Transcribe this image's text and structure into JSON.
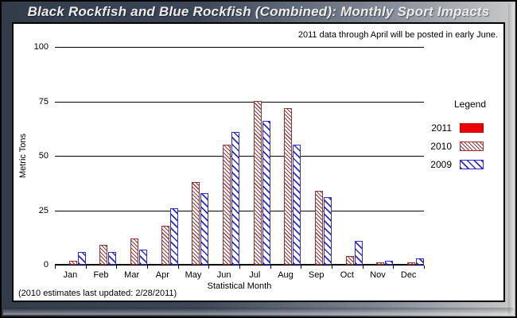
{
  "window": {
    "title": "Black Rockfish and Blue Rockfish (Combined): Monthly Sport Impacts"
  },
  "panel": {
    "note": "2011 data through April will be posted in early June.",
    "footnote": "(2010 estimates last updated: 2/28/2011)"
  },
  "legend": {
    "title": "Legend",
    "entries": [
      {
        "label": "2011",
        "pattern": "solid"
      },
      {
        "label": "2010",
        "pattern": "hatch-dense"
      },
      {
        "label": "2009",
        "pattern": "hatch-wide"
      }
    ]
  },
  "colors": {
    "solid_red_2011": "#ee0000",
    "hatch_maroon_2010": "#9a3334",
    "hatch_blue_2009": "#2b2bd0",
    "frame_dark": "#333c4b",
    "frame_light": "#c9c9c9"
  },
  "chart_data": {
    "type": "bar",
    "title": "Black Rockfish and Blue Rockfish (Combined): Monthly Sport Impacts",
    "categories": [
      "Jan",
      "Feb",
      "Mar",
      "Apr",
      "May",
      "Jun",
      "Jul",
      "Aug",
      "Sep",
      "Oct",
      "Nov",
      "Dec"
    ],
    "series": [
      {
        "name": "2011",
        "pattern": "solid",
        "color": "#ee0000",
        "values": [
          0,
          0,
          0,
          0,
          0,
          0,
          0,
          0,
          0,
          0,
          0,
          0
        ]
      },
      {
        "name": "2010",
        "pattern": "hatch-dense",
        "color": "#9a3334",
        "values": [
          2,
          9,
          12,
          18,
          38,
          55,
          75,
          72,
          34,
          4,
          1,
          1
        ]
      },
      {
        "name": "2009",
        "pattern": "hatch-wide",
        "color": "#2b2bd0",
        "values": [
          6,
          6,
          7,
          26,
          33,
          61,
          66,
          55,
          31,
          11,
          2,
          3
        ]
      }
    ],
    "xlabel": "Statistical Month",
    "ylabel": "Metric Tons",
    "ylim": [
      0,
      100
    ],
    "yticks": [
      0,
      25,
      50,
      75,
      100
    ],
    "grid": "horizontal",
    "legend_position": "right",
    "annotation": "2011 data through April will be posted in early June.",
    "footnote": "(2010 estimates last updated: 2/28/2011)"
  }
}
